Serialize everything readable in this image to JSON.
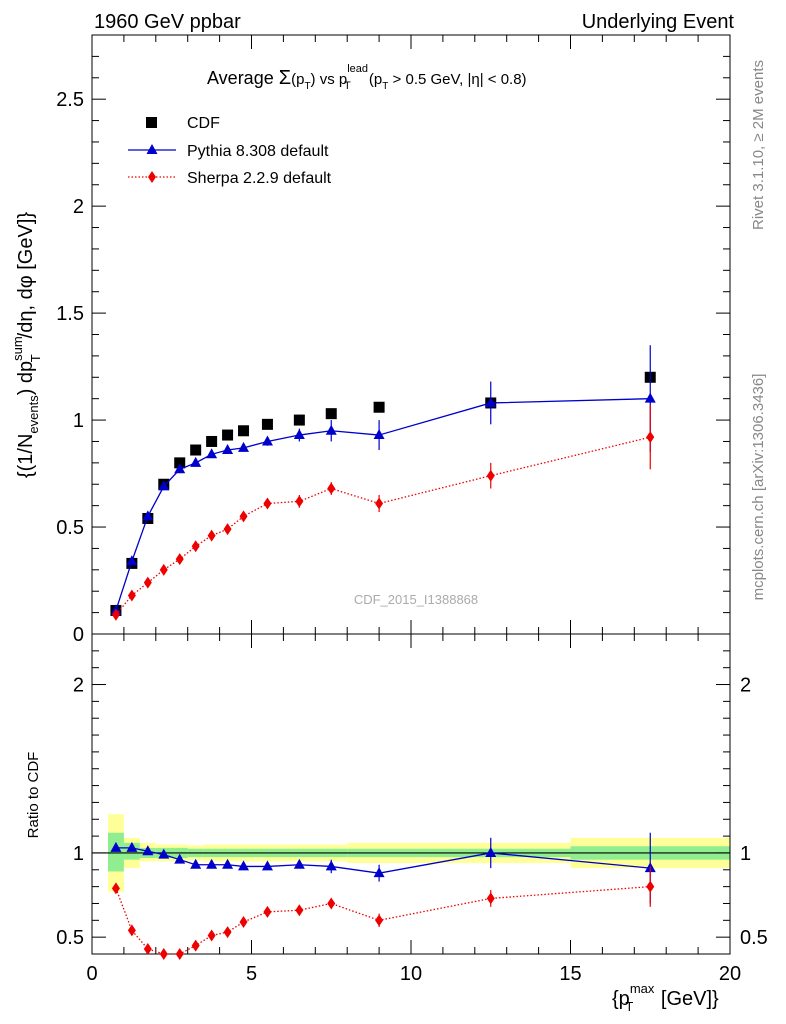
{
  "header": {
    "left": "1960 GeV ppbar",
    "right": "Underlying Event"
  },
  "title": {
    "prefix": "Average ",
    "sigma": "Σ",
    "ptsub": "(p",
    "t": "T",
    "close": ")",
    "vs": " vs p",
    "lead": "lead",
    "T2": "T",
    "cond": " (p",
    "T3": "T",
    "cut": " > 0.5 GeV, |η| < 0.8)"
  },
  "ylabel_main": "{(1/N",
  "ylabel_events": "events",
  "ylabel_mid": ") dp",
  "ylabel_sum": "sum",
  "ylabel_T": "T",
  "ylabel_end": "/dη, dφ [GeV]}",
  "ylabel_ratio": "Ratio to CDF",
  "xlabel": {
    "pre": "{p",
    "sup": "max",
    "sub": "T",
    "post": " [GeV]}"
  },
  "side_text_top": "Rivet 3.1.10, ≥ 2M events",
  "side_text_bottom": "mcplots.cern.ch [arXiv:1306.3436]",
  "watermark": "CDF_2015_I1388868",
  "legend": {
    "cdf": "CDF",
    "pythia": "Pythia 8.308 default",
    "sherpa": "Sherpa 2.2.9 default"
  },
  "colors": {
    "cdf": "#000000",
    "pythia": "#0000cc",
    "sherpa": "#ee0000",
    "band_inner": "#90ee90",
    "band_outer": "#ffff99"
  },
  "chart_data": [
    {
      "type": "scatter",
      "panel": "main",
      "xlim": [
        0,
        20
      ],
      "ylim": [
        0,
        2.8
      ],
      "y_ticks": [
        "0",
        "0.5",
        "1",
        "1.5",
        "2",
        "2.5"
      ],
      "x_ticks": [
        "0",
        "5",
        "10",
        "15",
        "20"
      ],
      "series": [
        {
          "name": "CDF",
          "marker": "square",
          "x": [
            0.75,
            1.25,
            1.75,
            2.25,
            2.75,
            3.25,
            3.75,
            4.25,
            4.75,
            5.5,
            6.5,
            7.5,
            9.0,
            12.5,
            17.5
          ],
          "y": [
            0.11,
            0.33,
            0.54,
            0.7,
            0.8,
            0.86,
            0.9,
            0.93,
            0.95,
            0.98,
            1.0,
            1.03,
            1.06,
            1.08,
            1.2
          ]
        },
        {
          "name": "Pythia 8.308 default",
          "marker": "triangle",
          "line": "solid",
          "x": [
            0.75,
            1.25,
            1.75,
            2.25,
            2.75,
            3.25,
            3.75,
            4.25,
            4.75,
            5.5,
            6.5,
            7.5,
            9.0,
            12.5,
            17.5
          ],
          "y": [
            0.11,
            0.34,
            0.55,
            0.69,
            0.77,
            0.8,
            0.84,
            0.86,
            0.87,
            0.9,
            0.93,
            0.95,
            0.93,
            1.08,
            1.1
          ],
          "err": [
            0.01,
            0.01,
            0.01,
            0.01,
            0.01,
            0.01,
            0.01,
            0.01,
            0.01,
            0.02,
            0.03,
            0.05,
            0.07,
            0.1,
            0.25
          ]
        },
        {
          "name": "Sherpa 2.2.9 default",
          "marker": "diamond",
          "line": "dotted",
          "x": [
            0.75,
            1.25,
            1.75,
            2.25,
            2.75,
            3.25,
            3.75,
            4.25,
            4.75,
            5.5,
            6.5,
            7.5,
            9.0,
            12.5,
            17.5
          ],
          "y": [
            0.09,
            0.18,
            0.24,
            0.3,
            0.35,
            0.41,
            0.46,
            0.49,
            0.55,
            0.61,
            0.62,
            0.68,
            0.61,
            0.74,
            0.92
          ],
          "err": [
            0.005,
            0.005,
            0.005,
            0.005,
            0.01,
            0.01,
            0.01,
            0.01,
            0.02,
            0.02,
            0.03,
            0.03,
            0.04,
            0.06,
            0.15
          ]
        }
      ]
    },
    {
      "type": "scatter",
      "panel": "ratio",
      "xlim": [
        0,
        20
      ],
      "ylim": [
        0.4,
        2.3
      ],
      "y_ticks": [
        "0.5",
        "1",
        "2"
      ],
      "x_ticks": [
        "0",
        "5",
        "10",
        "15",
        "20"
      ],
      "bands": [
        {
          "x0": 0.5,
          "x1": 1.0,
          "inner": [
            0.89,
            1.12
          ],
          "outer": [
            0.77,
            1.23
          ]
        },
        {
          "x0": 1.0,
          "x1": 1.5,
          "inner": [
            0.96,
            1.06
          ],
          "outer": [
            0.91,
            1.09
          ]
        },
        {
          "x0": 1.5,
          "x1": 2.0,
          "inner": [
            0.97,
            1.03
          ],
          "outer": [
            0.95,
            1.06
          ]
        },
        {
          "x0": 2.0,
          "x1": 3.0,
          "inner": [
            0.97,
            1.03
          ],
          "outer": [
            0.95,
            1.05
          ]
        },
        {
          "x0": 3.0,
          "x1": 3.5,
          "inner": [
            0.975,
            1.025
          ],
          "outer": [
            0.955,
            1.045
          ]
        },
        {
          "x0": 3.5,
          "x1": 8.0,
          "inner": [
            0.975,
            1.025
          ],
          "outer": [
            0.95,
            1.05
          ]
        },
        {
          "x0": 8.0,
          "x1": 10.0,
          "inner": [
            0.975,
            1.025
          ],
          "outer": [
            0.94,
            1.06
          ]
        },
        {
          "x0": 10.0,
          "x1": 15.0,
          "inner": [
            0.975,
            1.025
          ],
          "outer": [
            0.94,
            1.06
          ]
        },
        {
          "x0": 15.0,
          "x1": 20.0,
          "inner": [
            0.96,
            1.04
          ],
          "outer": [
            0.91,
            1.09
          ]
        }
      ],
      "series": [
        {
          "name": "Pythia 8.308 default",
          "marker": "triangle",
          "line": "solid",
          "x": [
            0.75,
            1.25,
            1.75,
            2.25,
            2.75,
            3.25,
            3.75,
            4.25,
            4.75,
            5.5,
            6.5,
            7.5,
            9.0,
            12.5,
            17.5
          ],
          "y": [
            1.03,
            1.03,
            1.01,
            0.99,
            0.96,
            0.93,
            0.93,
            0.93,
            0.92,
            0.92,
            0.93,
            0.92,
            0.88,
            1.0,
            0.91
          ],
          "err": [
            0.01,
            0.01,
            0.01,
            0.01,
            0.01,
            0.01,
            0.01,
            0.01,
            0.01,
            0.01,
            0.02,
            0.04,
            0.05,
            0.09,
            0.21
          ]
        },
        {
          "name": "Sherpa 2.2.9 default",
          "marker": "diamond",
          "line": "dotted",
          "x": [
            0.75,
            1.25,
            1.75,
            2.25,
            2.75,
            3.25,
            3.75,
            4.25,
            4.75,
            5.5,
            6.5,
            7.5,
            9.0,
            12.5,
            17.5
          ],
          "y": [
            0.79,
            0.54,
            0.43,
            0.4,
            0.4,
            0.45,
            0.51,
            0.53,
            0.59,
            0.65,
            0.66,
            0.7,
            0.6,
            0.73,
            0.8
          ],
          "err": [
            0.01,
            0.01,
            0.01,
            0.01,
            0.01,
            0.01,
            0.01,
            0.01,
            0.02,
            0.02,
            0.03,
            0.03,
            0.04,
            0.05,
            0.12
          ]
        }
      ]
    }
  ]
}
